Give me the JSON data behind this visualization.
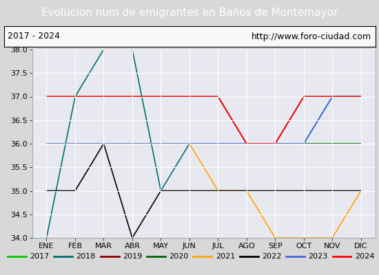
{
  "title": "Evolucion num de emigrantes en Baños de Montemayor",
  "subtitle_left": "2017 - 2024",
  "subtitle_right": "http://www.foro-ciudad.com",
  "xlabel_months": [
    "ENE",
    "FEB",
    "MAR",
    "ABR",
    "MAY",
    "JUN",
    "JUL",
    "AGO",
    "SEP",
    "OCT",
    "NOV",
    "DIC"
  ],
  "ylim": [
    34.0,
    38.0
  ],
  "yticks": [
    34.0,
    34.5,
    35.0,
    35.5,
    36.0,
    36.5,
    37.0,
    37.5,
    38.0
  ],
  "series": {
    "2017": {
      "color": "#00cc00",
      "data": [
        36,
        36,
        36,
        36,
        36,
        36,
        36,
        36,
        36,
        36,
        36,
        36
      ]
    },
    "2018": {
      "color": "#007070",
      "data": [
        34,
        37,
        38,
        38,
        35,
        36,
        36,
        36,
        36,
        36,
        37,
        37
      ]
    },
    "2019": {
      "color": "#8B0000",
      "data": [
        37,
        37,
        37,
        37,
        37,
        37,
        37,
        36,
        36,
        37,
        37,
        37
      ]
    },
    "2020": {
      "color": "#006400",
      "data": [
        36,
        36,
        36,
        36,
        36,
        36,
        36,
        36,
        36,
        36,
        36,
        36
      ]
    },
    "2021": {
      "color": "#FFA500",
      "data": [
        36,
        36,
        36,
        36,
        36,
        36,
        35,
        35,
        34,
        34,
        34,
        35
      ]
    },
    "2022": {
      "color": "#000000",
      "data": [
        35,
        35,
        36,
        34,
        35,
        35,
        35,
        35,
        35,
        35,
        35,
        35
      ]
    },
    "2023": {
      "color": "#4169E1",
      "data": [
        36,
        36,
        36,
        36,
        36,
        36,
        36,
        36,
        36,
        36,
        37,
        37
      ]
    },
    "2024": {
      "color": "#FF0000",
      "data": [
        37,
        37,
        37,
        37,
        37,
        37,
        37,
        36,
        36,
        37,
        37,
        37
      ]
    }
  },
  "title_bg_color": "#4a86d8",
  "title_fg_color": "#ffffff",
  "outer_bg_color": "#d8d8d8",
  "inner_bg_color": "#e8e8f0",
  "grid_color": "#ffffff",
  "legend_bg": "#ffffff",
  "legend_border_color": "#0000bb",
  "subtitle_border_color": "#000000",
  "title_fontsize": 11,
  "subtitle_fontsize": 9,
  "tick_fontsize": 8,
  "legend_fontsize": 8,
  "linewidth": 1.2
}
